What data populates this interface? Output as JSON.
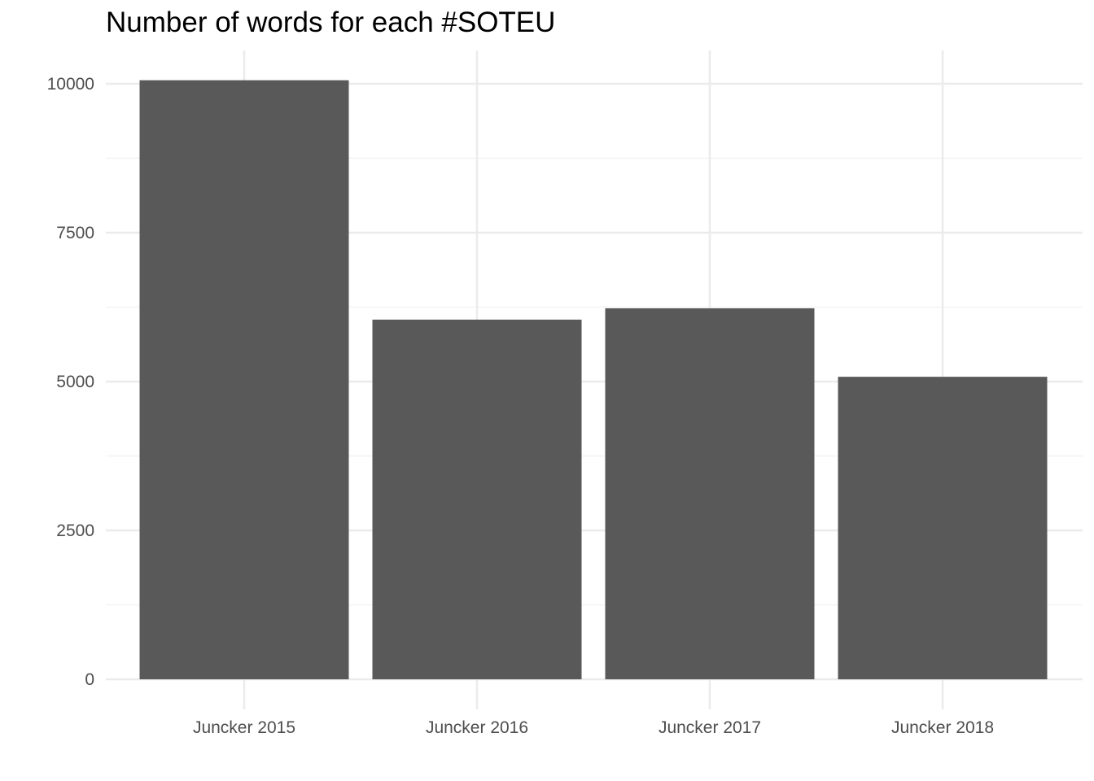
{
  "chart_data": {
    "type": "bar",
    "title": "Number of words for each #SOTEU",
    "xlabel": "",
    "ylabel": "",
    "categories": [
      "Juncker 2015",
      "Juncker 2016",
      "Juncker 2017",
      "Juncker 2018"
    ],
    "values": [
      10060,
      6040,
      6230,
      5080
    ],
    "ylim": [
      0,
      10573
    ],
    "yticks": [
      0,
      2500,
      5000,
      7500,
      10000
    ],
    "ytick_labels": [
      "0",
      "2500",
      "5000",
      "7500",
      "10000"
    ],
    "grid": true,
    "legend": "none",
    "colors": {
      "bar": "#595959",
      "grid_major": "#ebebeb",
      "grid_minor": "#f2f2f2",
      "tick_text": "#4d4d4d"
    }
  }
}
